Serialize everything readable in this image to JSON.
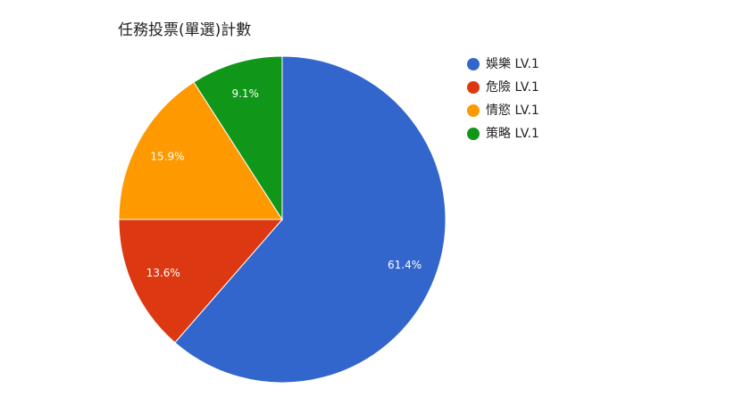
{
  "chart_data": {
    "type": "pie",
    "title": "任務投票(單選)計數",
    "categories": [
      "娛樂 LV.1",
      "危險 LV.1",
      "情慾 LV.1",
      "策略 LV.1"
    ],
    "values": [
      61.4,
      13.6,
      15.9,
      9.1
    ],
    "value_labels": [
      "61.4%",
      "13.6%",
      "15.9%",
      "9.1%"
    ],
    "colors": [
      "#3366cc",
      "#dc3912",
      "#ff9900",
      "#109618"
    ],
    "legend": "right"
  }
}
